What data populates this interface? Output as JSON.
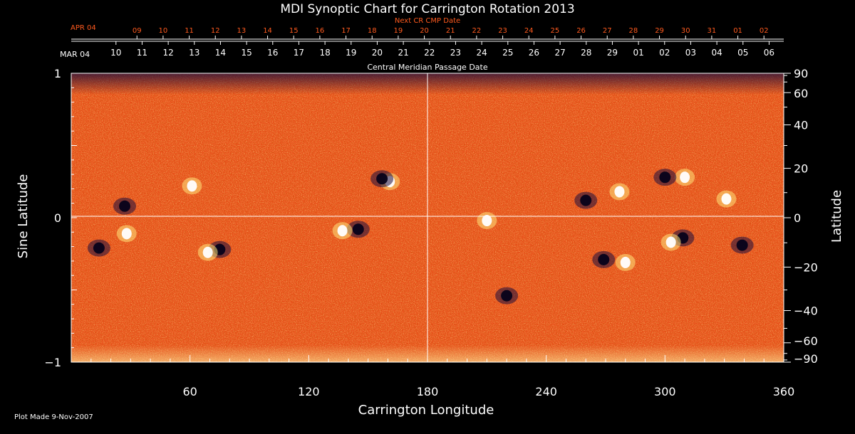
{
  "chart_data": {
    "type": "heatmap",
    "title": "MDI Synoptic Chart for Carrington Rotation 2013",
    "xlabel": "Carrington Longitude",
    "ylabel_left": "Sine Latitude",
    "ylabel_right": "Latitude",
    "xlim": [
      0,
      360
    ],
    "ylim": [
      -1,
      1
    ],
    "x_ticks": [
      "60",
      "120",
      "180",
      "240",
      "300",
      "360"
    ],
    "x_tick_values": [
      60,
      120,
      180,
      240,
      300,
      360
    ],
    "y_left_ticks": [
      "1",
      "0",
      "−1"
    ],
    "y_left_tick_values": [
      1,
      0,
      -1
    ],
    "y_right_ticks": [
      "90",
      "60",
      "40",
      "20",
      "0",
      "−20",
      "−40",
      "−60",
      "−90"
    ],
    "y_right_tick_values": [
      90,
      60,
      40,
      20,
      0,
      -20,
      -40,
      -60,
      -90
    ],
    "cmp_axis": {
      "label": "Central Meridian Passage Date",
      "start_label": "MAR 04",
      "dates": [
        "06",
        "05",
        "04",
        "03",
        "02",
        "01",
        "29",
        "28",
        "27",
        "26",
        "25",
        "24",
        "23",
        "22",
        "21",
        "20",
        "19",
        "18",
        "17",
        "16",
        "15",
        "14",
        "13",
        "12",
        "11",
        "10"
      ],
      "first_longitude": 352.6,
      "degrees_per_day": 13.2
    },
    "next_cmp_axis": {
      "label": "Next CR CMP Date",
      "start_label": "APR 04",
      "dates": [
        "02",
        "01",
        "31",
        "30",
        "29",
        "28",
        "27",
        "26",
        "25",
        "24",
        "23",
        "22",
        "21",
        "20",
        "19",
        "18",
        "17",
        "16",
        "15",
        "14",
        "13",
        "12",
        "11",
        "10",
        "09"
      ],
      "first_longitude": 350.0,
      "degrees_per_day": 13.2
    },
    "features": [
      {
        "type": "pos",
        "lon": 161,
        "slat": 0.25
      },
      {
        "type": "neg",
        "lon": 157,
        "slat": 0.27
      },
      {
        "type": "neg",
        "lon": 75,
        "slat": -0.22
      },
      {
        "type": "pos",
        "lon": 69,
        "slat": -0.24
      },
      {
        "type": "neg",
        "lon": 145,
        "slat": -0.08
      },
      {
        "type": "pos",
        "lon": 137,
        "slat": -0.09
      },
      {
        "type": "pos",
        "lon": 61,
        "slat": 0.22
      },
      {
        "type": "neg",
        "lon": 27,
        "slat": 0.08
      },
      {
        "type": "neg",
        "lon": 14,
        "slat": -0.21
      },
      {
        "type": "pos",
        "lon": 28,
        "slat": -0.11
      },
      {
        "type": "pos",
        "lon": 310,
        "slat": 0.28
      },
      {
        "type": "neg",
        "lon": 300,
        "slat": 0.28
      },
      {
        "type": "pos",
        "lon": 277,
        "slat": 0.18
      },
      {
        "type": "neg",
        "lon": 260,
        "slat": 0.12
      },
      {
        "type": "neg",
        "lon": 309,
        "slat": -0.14
      },
      {
        "type": "pos",
        "lon": 303,
        "slat": -0.17
      },
      {
        "type": "neg",
        "lon": 269,
        "slat": -0.29
      },
      {
        "type": "pos",
        "lon": 280,
        "slat": -0.31
      },
      {
        "type": "pos",
        "lon": 331,
        "slat": 0.13
      },
      {
        "type": "neg",
        "lon": 339,
        "slat": -0.19
      },
      {
        "type": "pos",
        "lon": 210,
        "slat": -0.02
      },
      {
        "type": "neg",
        "lon": 220,
        "slat": -0.54
      }
    ]
  },
  "footer": {
    "plot_made": "Plot Made  9-Nov-2007"
  }
}
